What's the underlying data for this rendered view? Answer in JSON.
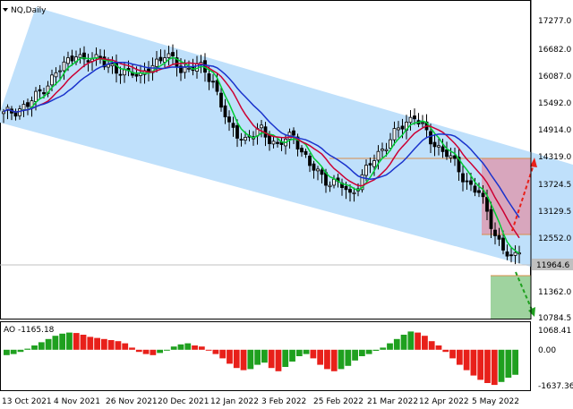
{
  "header": {
    "symbol_label": "NQ,Daily"
  },
  "colors": {
    "channel": "#bfe0fb",
    "ma_fast": "#00cc33",
    "ma_mid": "#cc0033",
    "ma_slow": "#1a33cc",
    "candle": "#000000",
    "ao_up": "#1fa01f",
    "ao_down": "#e8201a",
    "target_up_box": "#d8a6bd",
    "target_down_box": "#9fd39f",
    "arrow_up": "#e8201a",
    "arrow_down": "#1fa01f",
    "level_line": "#d98c4a",
    "price_line": "#c0c0c0"
  },
  "price_axis": {
    "ticks": [
      "17277.0",
      "16682.0",
      "16087.0",
      "15492.0",
      "14914.0",
      "14319.0",
      "13724.5",
      "13129.5",
      "12552.0",
      "11964.6",
      "11362.0",
      "10784.5"
    ],
    "current_price": "11964.6"
  },
  "ao_panel": {
    "label": "AO -1165.18",
    "ticks": [
      "1068.41",
      "0.00",
      "-1637.36"
    ]
  },
  "time_axis": {
    "labels": [
      "13 Oct 2021",
      "4 Nov 2021",
      "26 Nov 2021",
      "20 Dec 2021",
      "12 Jan 2022",
      "3 Feb 2022",
      "25 Feb 2022",
      "21 Mar 2022",
      "12 Apr 2022",
      "5 May 2022"
    ]
  },
  "chart_data": {
    "type": "candlestick",
    "title": "NQ,Daily",
    "price_range": [
      10500,
      17600
    ],
    "ao_range": [
      -1800,
      1200
    ],
    "close_anchors": [
      [
        0,
        15050
      ],
      [
        6,
        15250
      ],
      [
        12,
        15850
      ],
      [
        16,
        16250
      ],
      [
        18,
        16450
      ],
      [
        20,
        16200
      ],
      [
        24,
        16350
      ],
      [
        28,
        15950
      ],
      [
        32,
        16050
      ],
      [
        34,
        15850
      ],
      [
        38,
        16250
      ],
      [
        40,
        16400
      ],
      [
        44,
        16050
      ],
      [
        48,
        16150
      ],
      [
        52,
        15800
      ],
      [
        56,
        14750
      ],
      [
        60,
        14500
      ],
      [
        64,
        14700
      ],
      [
        68,
        14350
      ],
      [
        72,
        14600
      ],
      [
        76,
        13900
      ],
      [
        80,
        13600
      ],
      [
        84,
        13450
      ],
      [
        86,
        13250
      ],
      [
        90,
        13800
      ],
      [
        94,
        14300
      ],
      [
        98,
        14700
      ],
      [
        102,
        15050
      ],
      [
        106,
        14450
      ],
      [
        110,
        14200
      ],
      [
        114,
        13650
      ],
      [
        118,
        13300
      ],
      [
        120,
        12850
      ],
      [
        122,
        12400
      ],
      [
        124,
        12050
      ],
      [
        126,
        11800
      ],
      [
        128,
        11964.6
      ]
    ],
    "ao_values_sampled": [
      -250,
      -200,
      -100,
      50,
      200,
      350,
      500,
      650,
      750,
      800,
      780,
      700,
      600,
      550,
      500,
      450,
      400,
      300,
      100,
      -100,
      -200,
      -250,
      -150,
      0,
      150,
      250,
      300,
      200,
      150,
      0,
      -200,
      -400,
      -650,
      -850,
      -950,
      -900,
      -700,
      -600,
      -850,
      -1000,
      -800,
      -550,
      -300,
      -200,
      -400,
      -700,
      -900,
      -1000,
      -900,
      -750,
      -500,
      -300,
      -200,
      -50,
      100,
      300,
      500,
      700,
      850,
      800,
      650,
      400,
      200,
      -100,
      -400,
      -700,
      -950,
      -1200,
      -1400,
      -1550,
      -1637,
      -1500,
      -1300,
      -1165
    ],
    "levels": {
      "upper_target": 14319.0,
      "mid_level": 12552.0,
      "lower_target": 10784.5,
      "entry_level": 11750.0
    }
  }
}
